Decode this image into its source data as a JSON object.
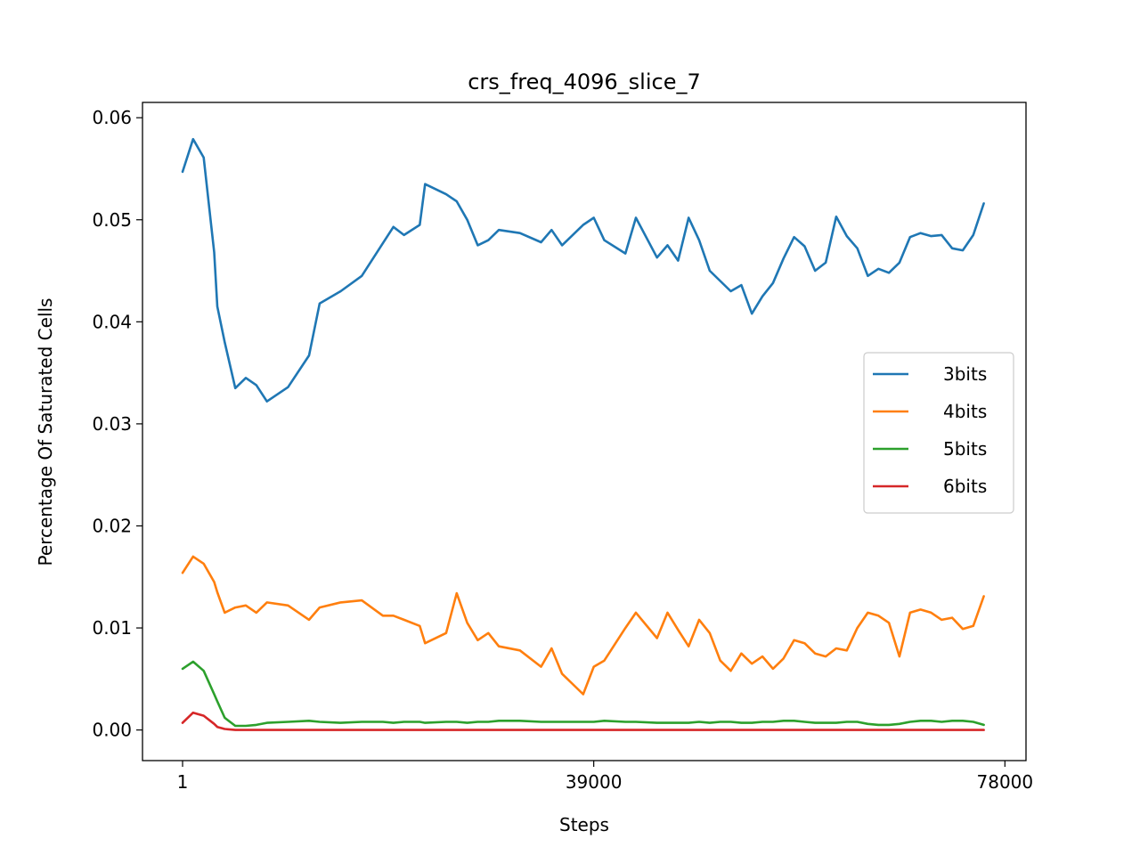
{
  "chart_data": {
    "type": "line",
    "title": "crs_freq_4096_slice_7",
    "xlabel": "Steps",
    "ylabel": "Percentage Of Saturated Cells",
    "xlim": [
      -3800,
      80000
    ],
    "ylim": [
      -0.003,
      0.0615
    ],
    "xticks": [
      1,
      39000,
      78000
    ],
    "xtick_labels": [
      "1",
      "39000",
      "78000"
    ],
    "yticks": [
      0.0,
      0.01,
      0.02,
      0.03,
      0.04,
      0.05,
      0.06
    ],
    "ytick_labels": [
      "0.00",
      "0.01",
      "0.02",
      "0.03",
      "0.04",
      "0.05",
      "0.06"
    ],
    "grid": false,
    "legend_position": "center-right",
    "x": [
      1,
      1000,
      2000,
      3000,
      3300,
      4000,
      5000,
      6000,
      7000,
      8000,
      10000,
      12000,
      13000,
      15000,
      17000,
      19000,
      20000,
      21000,
      22500,
      23000,
      25000,
      26000,
      27000,
      28000,
      29000,
      30000,
      32000,
      34000,
      35000,
      36000,
      38000,
      39000,
      40000,
      42000,
      43000,
      45000,
      46000,
      47000,
      48000,
      49000,
      50000,
      51000,
      52000,
      53000,
      54000,
      55000,
      56000,
      57000,
      58000,
      59000,
      60000,
      61000,
      62000,
      63000,
      64000,
      65000,
      66000,
      67000,
      68000,
      69000,
      70000,
      71000,
      72000,
      73000,
      74000,
      75000,
      76000
    ],
    "series": [
      {
        "name": "3bits",
        "color": "#1f77b4",
        "values": [
          0.0547,
          0.0579,
          0.0561,
          0.0468,
          0.0415,
          0.038,
          0.0335,
          0.0345,
          0.0338,
          0.0322,
          0.0336,
          0.0367,
          0.0418,
          0.043,
          0.0445,
          0.0477,
          0.0493,
          0.0485,
          0.0495,
          0.0535,
          0.0525,
          0.0518,
          0.05,
          0.0475,
          0.048,
          0.049,
          0.0487,
          0.0478,
          0.049,
          0.0475,
          0.0495,
          0.0502,
          0.048,
          0.0467,
          0.0502,
          0.0463,
          0.0475,
          0.046,
          0.0502,
          0.048,
          0.045,
          0.044,
          0.043,
          0.0436,
          0.0408,
          0.0425,
          0.0438,
          0.0462,
          0.0483,
          0.0474,
          0.045,
          0.0458,
          0.0503,
          0.0484,
          0.0472,
          0.0445,
          0.0452,
          0.0448,
          0.0458,
          0.0483,
          0.0487,
          0.0484,
          0.0485,
          0.0472,
          0.047,
          0.0485,
          0.0516
        ]
      },
      {
        "name": "4bits",
        "color": "#ff7f0e",
        "values": [
          0.0154,
          0.017,
          0.0163,
          0.0145,
          0.0135,
          0.0115,
          0.012,
          0.0122,
          0.0115,
          0.0125,
          0.0122,
          0.0108,
          0.012,
          0.0125,
          0.0127,
          0.0112,
          0.0112,
          0.0108,
          0.0102,
          0.0085,
          0.0095,
          0.0134,
          0.0105,
          0.0088,
          0.0095,
          0.0082,
          0.0078,
          0.0062,
          0.008,
          0.0055,
          0.0035,
          0.0062,
          0.0068,
          0.01,
          0.0115,
          0.009,
          0.0115,
          0.0098,
          0.0082,
          0.0108,
          0.0095,
          0.0068,
          0.0058,
          0.0075,
          0.0065,
          0.0072,
          0.006,
          0.007,
          0.0088,
          0.0085,
          0.0075,
          0.0072,
          0.008,
          0.0078,
          0.01,
          0.0115,
          0.0112,
          0.0105,
          0.0072,
          0.0115,
          0.0118,
          0.0115,
          0.0108,
          0.011,
          0.0099,
          0.0102,
          0.0131
        ]
      },
      {
        "name": "5bits",
        "color": "#2ca02c",
        "values": [
          0.006,
          0.0067,
          0.0058,
          0.0035,
          0.0028,
          0.0012,
          0.0004,
          0.0004,
          0.0005,
          0.0007,
          0.0008,
          0.0009,
          0.0008,
          0.0007,
          0.0008,
          0.0008,
          0.0007,
          0.0008,
          0.0008,
          0.0007,
          0.0008,
          0.0008,
          0.0007,
          0.0008,
          0.0008,
          0.0009,
          0.0009,
          0.0008,
          0.0008,
          0.0008,
          0.0008,
          0.0008,
          0.0009,
          0.0008,
          0.0008,
          0.0007,
          0.0007,
          0.0007,
          0.0007,
          0.0008,
          0.0007,
          0.0008,
          0.0008,
          0.0007,
          0.0007,
          0.0008,
          0.0008,
          0.0009,
          0.0009,
          0.0008,
          0.0007,
          0.0007,
          0.0007,
          0.0008,
          0.0008,
          0.0006,
          0.0005,
          0.0005,
          0.0006,
          0.0008,
          0.0009,
          0.0009,
          0.0008,
          0.0009,
          0.0009,
          0.0008,
          0.0005
        ]
      },
      {
        "name": "6bits",
        "color": "#d62728",
        "values": [
          0.0007,
          0.0017,
          0.0014,
          0.0006,
          0.0003,
          0.0001,
          0.0,
          0.0,
          0.0,
          0.0,
          0.0,
          0.0,
          0.0,
          0.0,
          0.0,
          0.0,
          0.0,
          0.0,
          0.0,
          0.0,
          0.0,
          0.0,
          0.0,
          0.0,
          0.0,
          0.0,
          0.0,
          0.0,
          0.0,
          0.0,
          0.0,
          0.0,
          0.0,
          0.0,
          0.0,
          0.0,
          0.0,
          0.0,
          0.0,
          0.0,
          0.0,
          0.0,
          0.0,
          0.0,
          0.0,
          0.0,
          0.0,
          0.0,
          0.0,
          0.0,
          0.0,
          0.0,
          0.0,
          0.0,
          0.0,
          0.0,
          0.0,
          0.0,
          0.0,
          0.0,
          0.0,
          0.0,
          0.0,
          0.0,
          0.0,
          0.0,
          0.0
        ]
      }
    ]
  }
}
